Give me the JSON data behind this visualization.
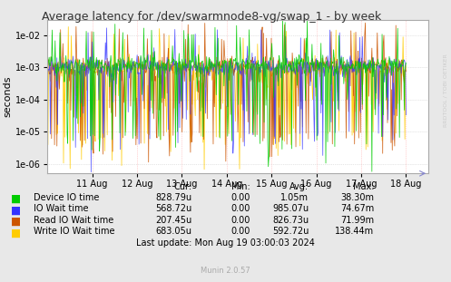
{
  "title": "Average latency for /dev/swarmnode8-vg/swap_1 - by week",
  "ylabel": "seconds",
  "background_color": "#e8e8e8",
  "plot_bg_color": "#ffffff",
  "grid_h_color": "#cccccc",
  "grid_v_color": "#ffaaaa",
  "border_color": "#aaaaaa",
  "ylim": [
    5e-07,
    0.03
  ],
  "y_ticks": [
    1e-06,
    1e-05,
    0.0001,
    0.001,
    0.01
  ],
  "y_tick_labels": [
    "1e-06",
    "1e-05",
    "1e-04",
    "1e-03",
    "1e-02"
  ],
  "x_tick_labels": [
    "11 Aug",
    "12 Aug",
    "13 Aug",
    "14 Aug",
    "15 Aug",
    "16 Aug",
    "17 Aug",
    "18 Aug"
  ],
  "colors": {
    "device_io": "#00cc00",
    "io_wait": "#3333ff",
    "read_io_wait": "#cc5500",
    "write_io_wait": "#ffcc00"
  },
  "legend_items": [
    {
      "label": "Device IO time",
      "color": "#00cc00"
    },
    {
      "label": "IO Wait time",
      "color": "#3333ff"
    },
    {
      "label": "Read IO Wait time",
      "color": "#cc5500"
    },
    {
      "label": "Write IO Wait time",
      "color": "#ffcc00"
    }
  ],
  "table_headers": [
    "Cur:",
    "Min:",
    "Avg:",
    "Max:"
  ],
  "table_rows": [
    [
      "Device IO time",
      "828.79u",
      "0.00",
      "1.05m",
      "38.30m"
    ],
    [
      "IO Wait time",
      "568.72u",
      "0.00",
      "985.07u",
      "74.67m"
    ],
    [
      "Read IO Wait time",
      "207.45u",
      "0.00",
      "826.73u",
      "71.99m"
    ],
    [
      "Write IO Wait time",
      "683.05u",
      "0.00",
      "592.72u",
      "138.44m"
    ]
  ],
  "footer_text": "Last update: Mon Aug 19 03:00:03 2024",
  "munin_text": "Munin 2.0.57",
  "watermark": "RRDTOOL / TOBI OETIKER",
  "seed": 42,
  "n_points": 600
}
